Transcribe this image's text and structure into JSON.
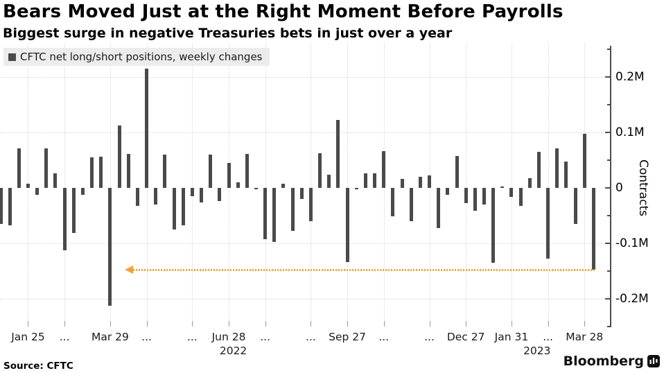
{
  "header": {
    "title": "Bears Moved Just at the Right Moment Before Payrolls",
    "subtitle": "Biggest surge in negative Treasuries bets in just over a year"
  },
  "legend": {
    "label": "CFTC net long/short positions, weekly changes"
  },
  "chart_data": {
    "type": "bar",
    "title": "CFTC net long/short positions, weekly changes",
    "unit": "millions of contracts",
    "ylabel": "Contracts",
    "ylim": [
      -0.26,
      0.26
    ],
    "grid": true,
    "legend_position": "top-left",
    "values": [
      -0.065,
      -0.068,
      0.071,
      0.007,
      -0.012,
      0.071,
      0.026,
      -0.112,
      -0.081,
      -0.013,
      0.055,
      0.056,
      -0.213,
      0.113,
      0.061,
      -0.032,
      0.215,
      -0.03,
      0.06,
      -0.075,
      -0.067,
      -0.015,
      -0.026,
      0.06,
      -0.024,
      0.045,
      0.01,
      0.061,
      -0.002,
      -0.093,
      -0.097,
      0.008,
      -0.078,
      -0.02,
      -0.06,
      0.063,
      0.024,
      0.123,
      -0.134,
      -0.003,
      0.026,
      0.026,
      0.066,
      -0.051,
      0.016,
      -0.06,
      0.02,
      0.023,
      -0.073,
      -0.012,
      0.058,
      -0.027,
      -0.041,
      -0.03,
      -0.135,
      0.002,
      -0.016,
      -0.032,
      0.018,
      0.065,
      -0.127,
      0.071,
      0.048,
      -0.065,
      0.098,
      -0.148
    ],
    "x_ticks": [
      {
        "index": 3,
        "label": "Jan 25"
      },
      {
        "index": 7,
        "label": "..."
      },
      {
        "index": 12,
        "label": "Mar 29"
      },
      {
        "index": 16,
        "label": "..."
      },
      {
        "index": 21,
        "label": "..."
      },
      {
        "index": 25,
        "label": "Jun 28"
      },
      {
        "index": 29,
        "label": "..."
      },
      {
        "index": 34,
        "label": "..."
      },
      {
        "index": 38,
        "label": "Sep 27"
      },
      {
        "index": 42,
        "label": "..."
      },
      {
        "index": 47,
        "label": "..."
      },
      {
        "index": 51,
        "label": "Dec 27"
      },
      {
        "index": 56,
        "label": "Jan 31"
      },
      {
        "index": 60,
        "label": "..."
      },
      {
        "index": 64,
        "label": "Mar 28"
      }
    ],
    "year_labels": [
      {
        "label": "2022",
        "index": 25.5
      },
      {
        "label": "2023",
        "index": 58.8
      }
    ],
    "y_axis": {
      "major_ticks": [
        {
          "value": 0.2,
          "label": "0.2M"
        },
        {
          "value": 0.1,
          "label": "0.1M"
        },
        {
          "value": 0,
          "label": "0"
        },
        {
          "value": -0.1,
          "label": "-0.1M"
        },
        {
          "value": -0.2,
          "label": "-0.2M"
        }
      ],
      "minor_tick_values": [
        0.25,
        0.15,
        0.05,
        -0.05,
        -0.15,
        -0.25
      ],
      "gridline_values": [
        0.2,
        0.1,
        -0.1,
        -0.2
      ]
    },
    "annotation": {
      "value": -0.148,
      "from_index": 14.5,
      "to_index": 65,
      "arrow_direction": "left"
    }
  },
  "footer": {
    "source": "Source: CFTC",
    "brand": "Bloomberg"
  },
  "colors": {
    "bar": "#4a4a4a",
    "annotation": "#f2a33c",
    "grid": "#d8d8d8",
    "axis": "#4d4d4d",
    "legend_bg": "#ececec",
    "background": "#ffffff",
    "text": "#000000"
  }
}
